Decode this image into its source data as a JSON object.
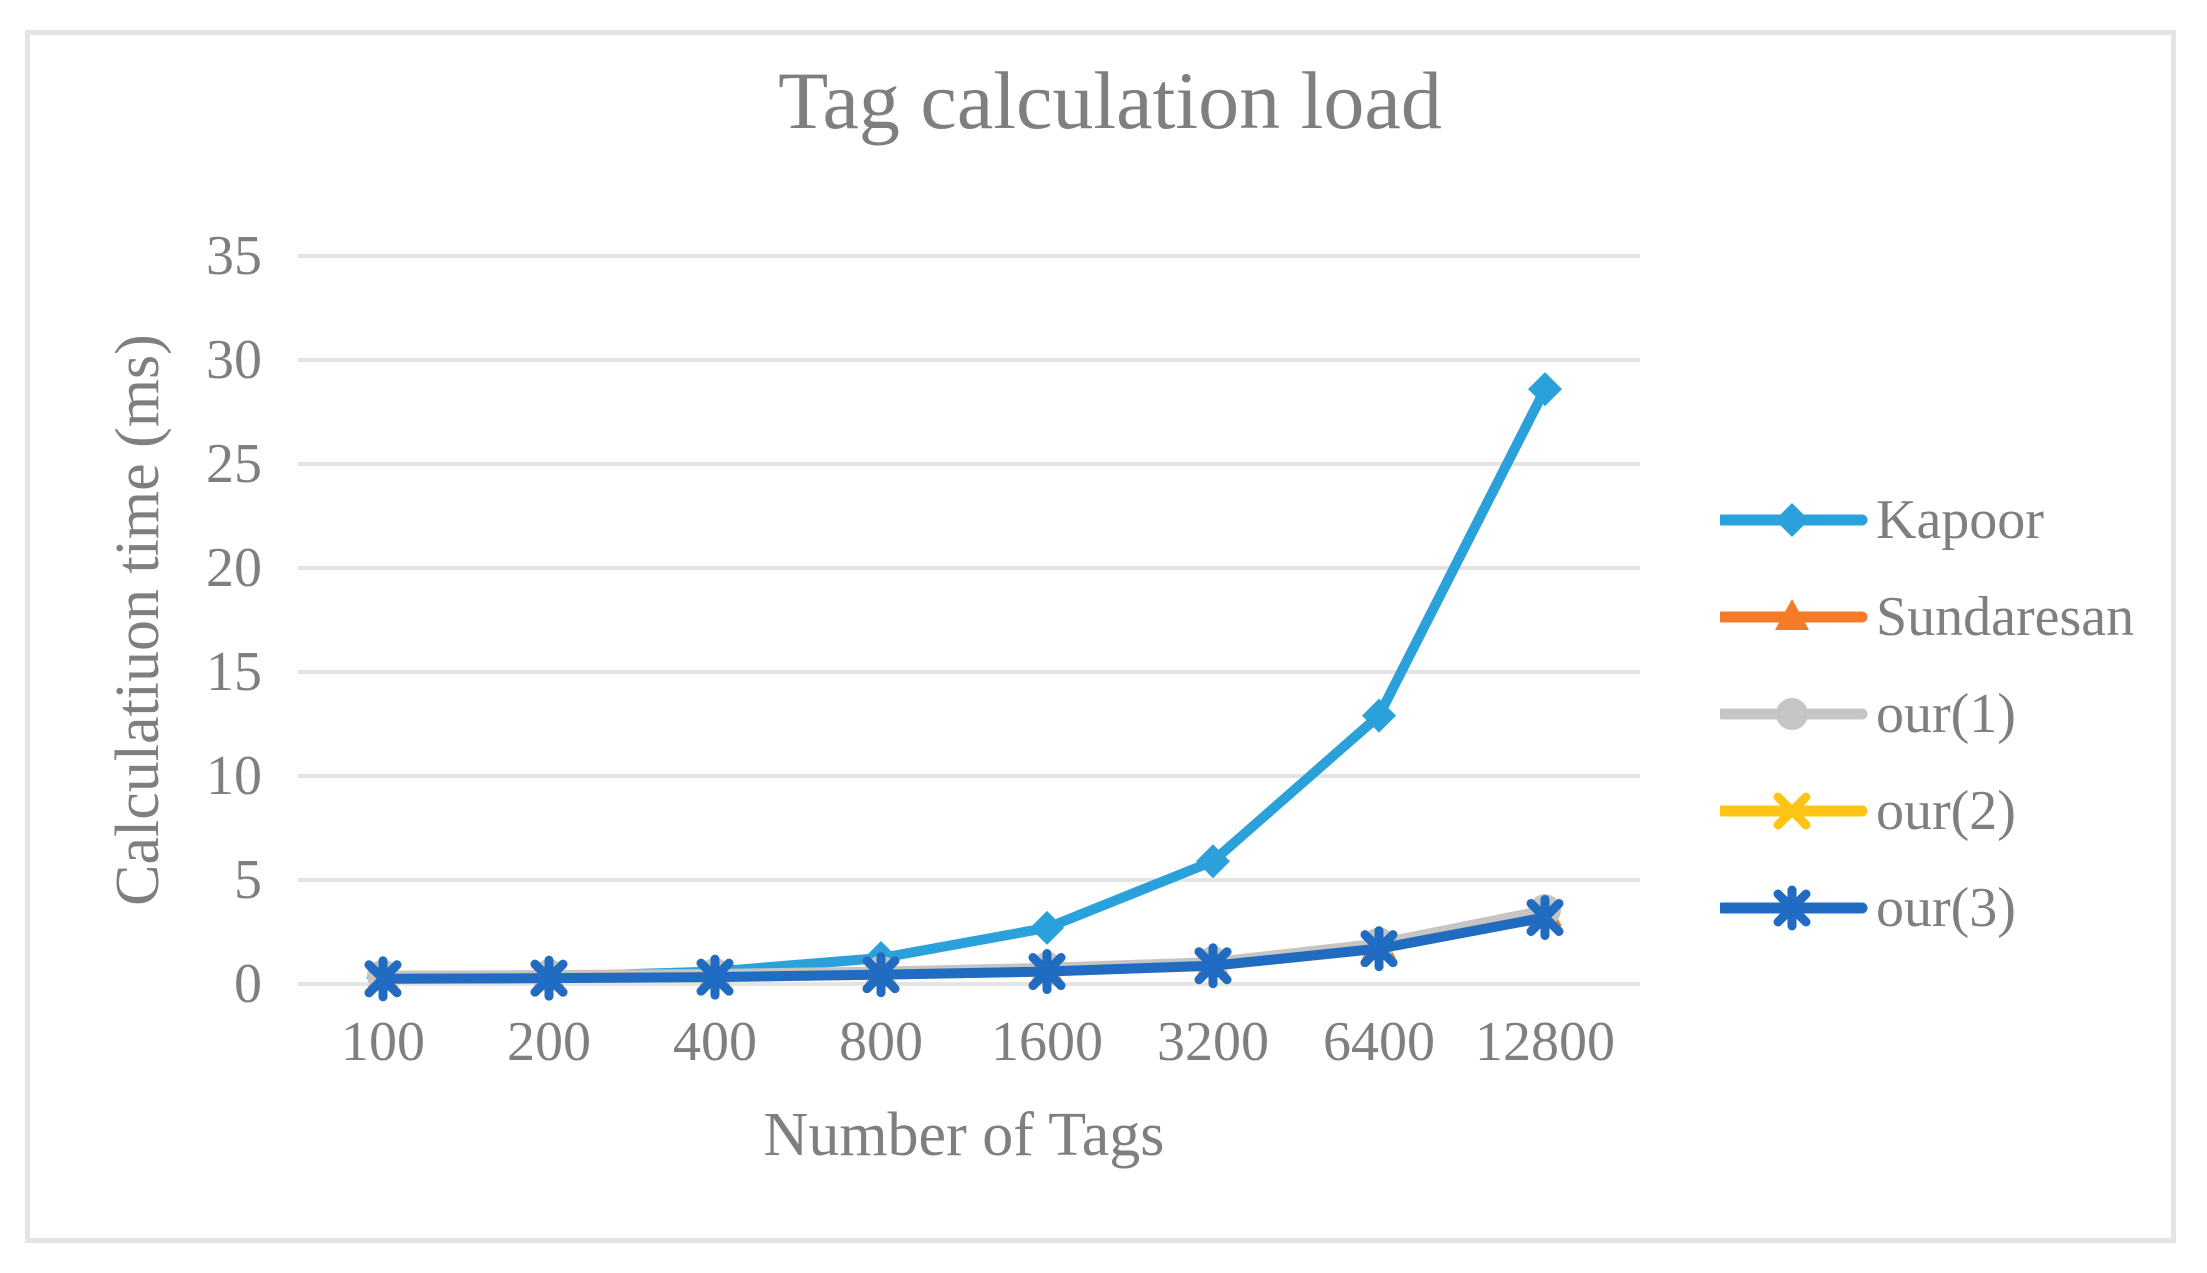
{
  "chart_data": {
    "type": "line",
    "title": "Tag calculation load",
    "xlabel": "Number of Tags",
    "ylabel": "Calculatiuon time (ms)",
    "categories": [
      "100",
      "200",
      "400",
      "800",
      "1600",
      "3200",
      "6400",
      "12800"
    ],
    "y_ticks": [
      0,
      5,
      10,
      15,
      20,
      25,
      30,
      35
    ],
    "ylim": [
      0,
      35
    ],
    "grid": true,
    "legend_position": "right",
    "series": [
      {
        "name": "Kapoor",
        "color": "#2BA1DC",
        "marker": "diamond",
        "values": [
          0.3,
          0.35,
          0.6,
          1.25,
          2.7,
          5.9,
          12.9,
          28.6
        ]
      },
      {
        "name": "Sundaresan",
        "color": "#F57B28",
        "marker": "triangle",
        "values": [
          0.3,
          0.32,
          0.38,
          0.5,
          0.65,
          0.95,
          1.85,
          3.4
        ]
      },
      {
        "name": "our(1)",
        "color": "#C5C5C5",
        "marker": "circle",
        "values": [
          0.4,
          0.43,
          0.48,
          0.6,
          0.78,
          1.05,
          1.95,
          3.55
        ]
      },
      {
        "name": "our(2)",
        "color": "#FFC415",
        "marker": "x",
        "values": [
          0.25,
          0.28,
          0.33,
          0.45,
          0.6,
          0.88,
          1.7,
          3.2
        ]
      },
      {
        "name": "our(3)",
        "color": "#1F6CC2",
        "marker": "asterisk",
        "values": [
          0.25,
          0.28,
          0.33,
          0.45,
          0.6,
          0.88,
          1.7,
          3.2
        ]
      }
    ],
    "colors": {
      "grid": "#E4E4E4",
      "border": "#E4E4E4",
      "text": "#7F7F7F",
      "background": "#FFFFFF"
    }
  }
}
